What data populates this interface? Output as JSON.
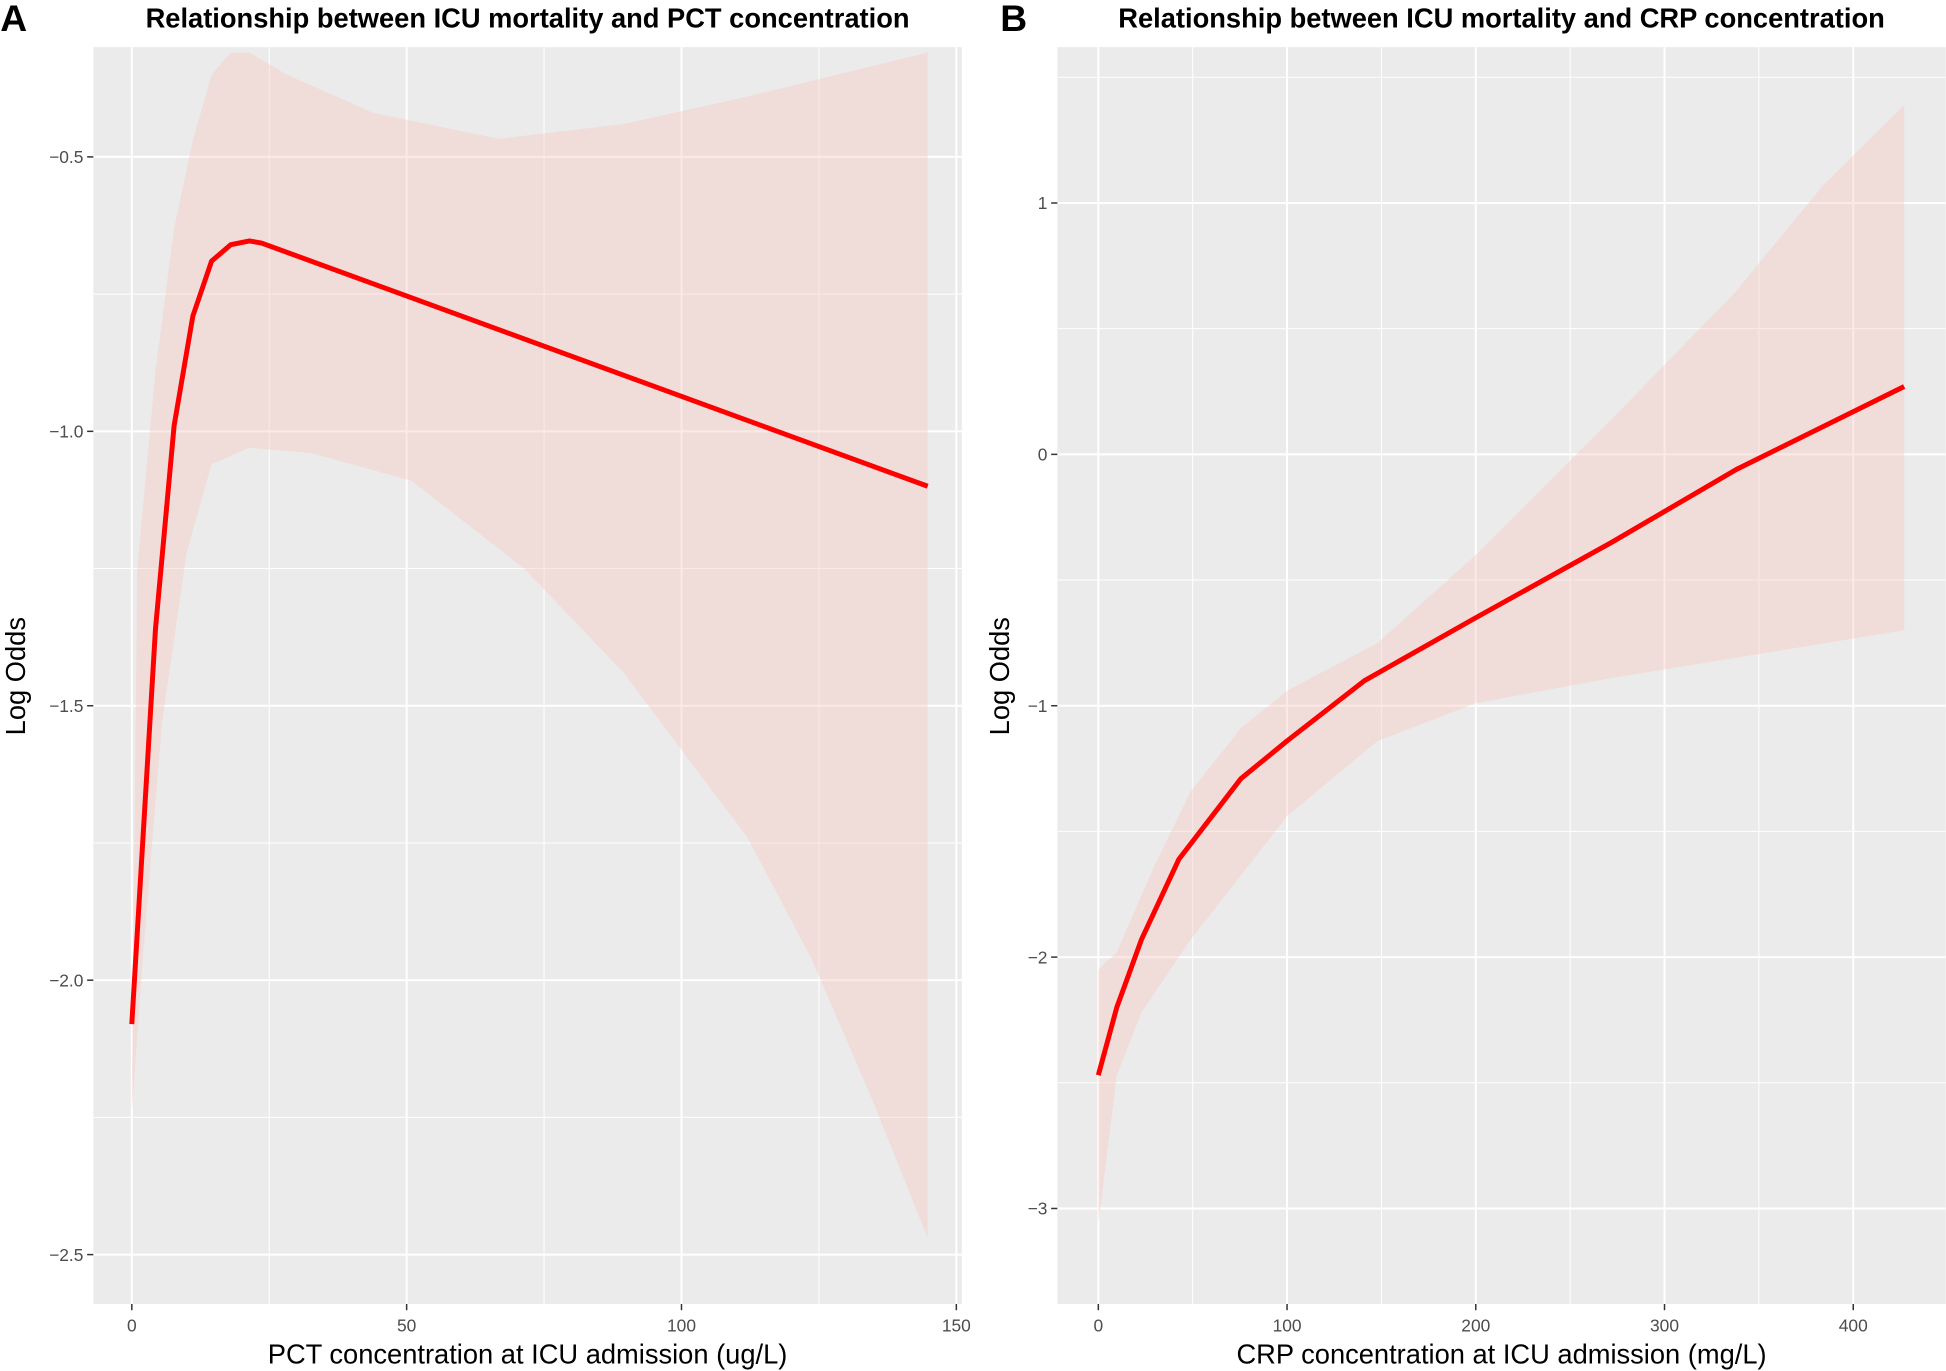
{
  "chart_data": [
    {
      "type": "line",
      "tag": "A",
      "title": "Relationship between ICU mortality and PCT concentration",
      "xlabel": "PCT concentration at ICU admission (ug/L)",
      "ylabel": "Log Odds",
      "xlim": [
        -7,
        151
      ],
      "ylim": [
        -2.59,
        -0.3
      ],
      "xticks": [
        0,
        50,
        100,
        150
      ],
      "yticks": [
        -0.5,
        -1.0,
        -1.5,
        -2.0,
        -2.5
      ],
      "xtick_labels": [
        "0",
        "50",
        "100",
        "150"
      ],
      "ytick_labels": [
        "−0.5",
        "−1.0",
        "−1.5",
        "−2.0",
        "−2.5"
      ],
      "grid": true,
      "line_color": "#ff0000",
      "band_color": "#f8c8c0",
      "series": [
        {
          "name": "fit",
          "x": [
            0,
            2,
            4.3,
            7.7,
            11.1,
            14.5,
            18,
            21.4,
            23.6,
            144.8
          ],
          "y": [
            -2.08,
            -1.745,
            -1.36,
            -0.99,
            -0.79,
            -0.69,
            -0.66,
            -0.653,
            -0.657,
            -1.1
          ]
        },
        {
          "name": "upper",
          "x": [
            0,
            1,
            4.3,
            7.7,
            11.1,
            14.5,
            18,
            21.4,
            28.2,
            44,
            66.8,
            89.5,
            112,
            144.8
          ],
          "y": [
            -2.2,
            -1.25,
            -0.89,
            -0.63,
            -0.47,
            -0.35,
            -0.31,
            -0.31,
            -0.35,
            -0.42,
            -0.467,
            -0.44,
            -0.39,
            -0.31
          ]
        },
        {
          "name": "lower",
          "x": [
            0,
            2,
            5.5,
            10,
            14.5,
            21.4,
            32.7,
            50.9,
            71.4,
            89.5,
            112,
            123.6,
            134.8,
            144.8
          ],
          "y": [
            -2.24,
            -1.96,
            -1.53,
            -1.22,
            -1.06,
            -1.03,
            -1.04,
            -1.09,
            -1.25,
            -1.44,
            -1.74,
            -1.96,
            -2.22,
            -2.47
          ]
        }
      ]
    },
    {
      "type": "line",
      "tag": "B",
      "title": "Relationship between ICU mortality and CRP concentration",
      "xlabel": "CRP concentration at ICU admission (mg/L)",
      "ylabel": "Log Odds",
      "xlim": [
        -21.7,
        449
      ],
      "ylim": [
        -3.38,
        1.62
      ],
      "xticks": [
        0,
        100,
        200,
        300,
        400
      ],
      "yticks": [
        1,
        0,
        -1,
        -2,
        -3
      ],
      "xtick_labels": [
        "0",
        "100",
        "200",
        "300",
        "400"
      ],
      "ytick_labels": [
        "1",
        "0",
        "−1",
        "−2",
        "−3"
      ],
      "grid": true,
      "line_color": "#ff0000",
      "band_color": "#f8c8c0",
      "series": [
        {
          "name": "fit",
          "x": [
            0,
            9.8,
            22.9,
            42.7,
            75.5,
            100,
            141,
            200,
            272,
            338,
            427
          ],
          "y": [
            -2.47,
            -2.2,
            -1.93,
            -1.61,
            -1.29,
            -1.14,
            -0.9,
            -0.65,
            -0.35,
            -0.06,
            0.27
          ]
        },
        {
          "name": "upper",
          "x": [
            0,
            9.8,
            29.5,
            49,
            75.5,
            100,
            148,
            200,
            272,
            338,
            384,
            427
          ],
          "y": [
            -2.05,
            -1.98,
            -1.64,
            -1.34,
            -1.09,
            -0.94,
            -0.75,
            -0.4,
            0.14,
            0.65,
            1.07,
            1.39
          ]
        },
        {
          "name": "lower",
          "x": [
            0,
            9.8,
            22.9,
            49,
            100,
            148,
            200,
            272,
            427
          ],
          "y": [
            -3.06,
            -2.47,
            -2.22,
            -1.93,
            -1.44,
            -1.14,
            -0.99,
            -0.89,
            -0.7
          ]
        }
      ]
    }
  ]
}
